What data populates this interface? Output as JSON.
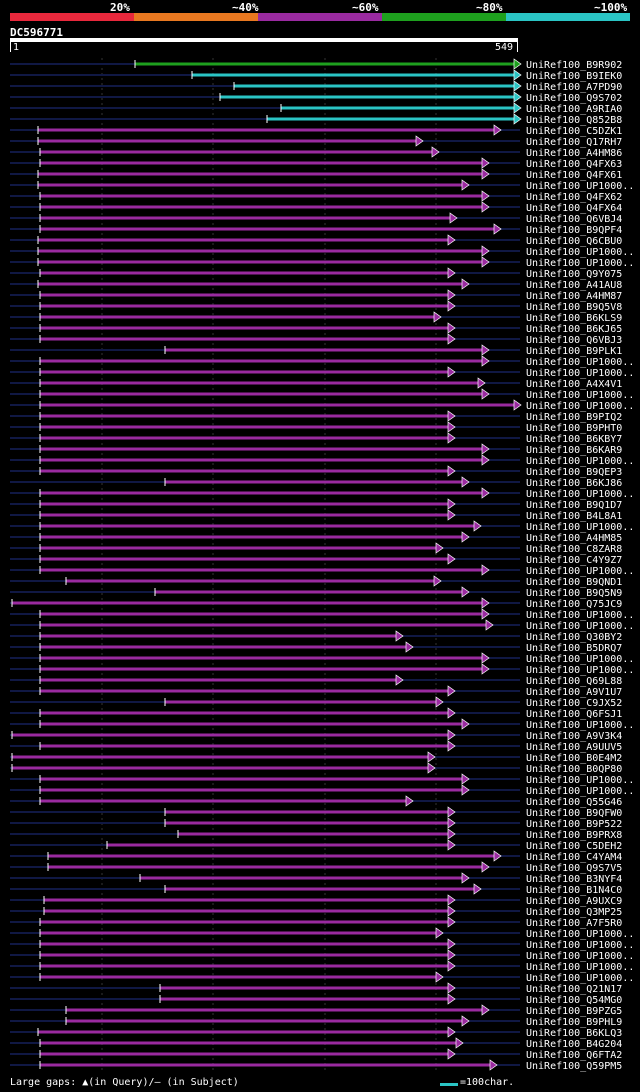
{
  "legend": [
    {
      "label": "20%",
      "color": "#e8283c"
    },
    {
      "label": "~40%",
      "color": "#e87820"
    },
    {
      "label": "~60%",
      "color": "#9a2aa0"
    },
    {
      "label": "~80%",
      "color": "#1ea01e"
    },
    {
      "label": "~100%",
      "color": "#2ac4c4"
    }
  ],
  "query": {
    "id": "DC596771",
    "start": "1",
    "end": "549"
  },
  "footer": {
    "gaps_text": "Large gaps: ▲(in Query)/– (in Subject)",
    "scale_text": "=100char."
  },
  "hits": [
    {
      "id": "UniRef100_B9R902",
      "color": "#1ea01e",
      "qs": 135,
      "qe": 516,
      "arrow": "end"
    },
    {
      "id": "UniRef100_B9IEK0",
      "color": "#2ac4c4",
      "qs": 192,
      "qe": 516,
      "arrow": "end"
    },
    {
      "id": "UniRef100_A7PD90",
      "color": "#2ac4c4",
      "qs": 234,
      "qe": 516,
      "arrow": "end"
    },
    {
      "id": "UniRef100_Q9S702",
      "color": "#2ac4c4",
      "qs": 220,
      "qe": 516,
      "arrow": "end"
    },
    {
      "id": "UniRef100_A9RIA0",
      "color": "#2ac4c4",
      "qs": 281,
      "qe": 516,
      "arrow": "end"
    },
    {
      "id": "UniRef100_Q852B8",
      "color": "#2ac4c4",
      "qs": 267,
      "qe": 516,
      "arrow": "end"
    },
    {
      "id": "UniRef100_C5DZK1",
      "color": "#9a2aa0",
      "qs": 38,
      "qe": 496,
      "arrow": "end"
    },
    {
      "id": "UniRef100_Q17RH7",
      "color": "#9a2aa0",
      "qs": 38,
      "qe": 418,
      "arrow": "end"
    },
    {
      "id": "UniRef100_A4HM86",
      "color": "#9a2aa0",
      "qs": 40,
      "qe": 434,
      "arrow": "end"
    },
    {
      "id": "UniRef100_Q4FX63",
      "color": "#9a2aa0",
      "qs": 40,
      "qe": 484,
      "arrow": "end"
    },
    {
      "id": "UniRef100_Q4FX61",
      "color": "#9a2aa0",
      "qs": 38,
      "qe": 484,
      "arrow": "end"
    },
    {
      "id": "UniRef100_UP1000..",
      "color": "#9a2aa0",
      "qs": 38,
      "qe": 464,
      "arrow": "end"
    },
    {
      "id": "UniRef100_Q4FX62",
      "color": "#9a2aa0",
      "qs": 40,
      "qe": 484,
      "arrow": "end"
    },
    {
      "id": "UniRef100_Q4FX64",
      "color": "#9a2aa0",
      "qs": 40,
      "qe": 484,
      "arrow": "end"
    },
    {
      "id": "UniRef100_Q6VBJ4",
      "color": "#9a2aa0",
      "qs": 40,
      "qe": 452,
      "arrow": "end"
    },
    {
      "id": "UniRef100_B9QPF4",
      "color": "#9a2aa0",
      "qs": 40,
      "qe": 496,
      "arrow": "end"
    },
    {
      "id": "UniRef100_Q6CBU0",
      "color": "#9a2aa0",
      "qs": 38,
      "qe": 450,
      "arrow": "end"
    },
    {
      "id": "UniRef100_UP1000..",
      "color": "#9a2aa0",
      "qs": 38,
      "qe": 484,
      "arrow": "end"
    },
    {
      "id": "UniRef100_UP1000..",
      "color": "#9a2aa0",
      "qs": 38,
      "qe": 484,
      "arrow": "end"
    },
    {
      "id": "UniRef100_Q9Y075",
      "color": "#9a2aa0",
      "qs": 40,
      "qe": 450,
      "arrow": "end"
    },
    {
      "id": "UniRef100_A41AU8",
      "color": "#9a2aa0",
      "qs": 38,
      "qe": 464,
      "arrow": "end"
    },
    {
      "id": "UniRef100_A4HM87",
      "color": "#9a2aa0",
      "qs": 40,
      "qe": 450,
      "arrow": "end"
    },
    {
      "id": "UniRef100_B9Q5V8",
      "color": "#9a2aa0",
      "qs": 40,
      "qe": 450,
      "arrow": "end"
    },
    {
      "id": "UniRef100_B6KLS9",
      "color": "#9a2aa0",
      "qs": 40,
      "qe": 436,
      "arrow": "end"
    },
    {
      "id": "UniRef100_B6KJ65",
      "color": "#9a2aa0",
      "qs": 40,
      "qe": 450,
      "arrow": "end"
    },
    {
      "id": "UniRef100_Q6VBJ3",
      "color": "#9a2aa0",
      "qs": 40,
      "qe": 450,
      "arrow": "end"
    },
    {
      "id": "UniRef100_B9PLK1",
      "color": "#9a2aa0",
      "qs": 165,
      "qe": 484,
      "arrow": "end"
    },
    {
      "id": "UniRef100_UP1000..",
      "color": "#9a2aa0",
      "qs": 40,
      "qe": 484,
      "arrow": "end"
    },
    {
      "id": "UniRef100_UP1000..",
      "color": "#9a2aa0",
      "qs": 40,
      "qe": 450,
      "arrow": "end"
    },
    {
      "id": "UniRef100_A4X4V1",
      "color": "#9a2aa0",
      "qs": 40,
      "qe": 480,
      "arrow": "end"
    },
    {
      "id": "UniRef100_UP1000..",
      "color": "#9a2aa0",
      "qs": 40,
      "qe": 484,
      "arrow": "end"
    },
    {
      "id": "UniRef100_UP1000..",
      "color": "#9a2aa0",
      "qs": 40,
      "qe": 516,
      "arrow": "end"
    },
    {
      "id": "UniRef100_B9PIQ2",
      "color": "#9a2aa0",
      "qs": 40,
      "qe": 450,
      "arrow": "end"
    },
    {
      "id": "UniRef100_B9PHT0",
      "color": "#9a2aa0",
      "qs": 40,
      "qe": 450,
      "arrow": "end"
    },
    {
      "id": "UniRef100_B6KBY7",
      "color": "#9a2aa0",
      "qs": 40,
      "qe": 450,
      "arrow": "end"
    },
    {
      "id": "UniRef100_B6KAR9",
      "color": "#9a2aa0",
      "qs": 40,
      "qe": 484,
      "arrow": "end"
    },
    {
      "id": "UniRef100_UP1000..",
      "color": "#9a2aa0",
      "qs": 40,
      "qe": 484,
      "arrow": "end"
    },
    {
      "id": "UniRef100_B9QEP3",
      "color": "#9a2aa0",
      "qs": 40,
      "qe": 450,
      "arrow": "end"
    },
    {
      "id": "UniRef100_B6KJ86",
      "color": "#9a2aa0",
      "qs": 165,
      "qe": 464,
      "arrow": "end"
    },
    {
      "id": "UniRef100_UP1000..",
      "color": "#9a2aa0",
      "qs": 40,
      "qe": 484,
      "arrow": "end"
    },
    {
      "id": "UniRef100_B9Q1D7",
      "color": "#9a2aa0",
      "qs": 40,
      "qe": 450,
      "arrow": "end"
    },
    {
      "id": "UniRef100_B4L8A1",
      "color": "#9a2aa0",
      "qs": 40,
      "qe": 450,
      "arrow": "end"
    },
    {
      "id": "UniRef100_UP1000..",
      "color": "#9a2aa0",
      "qs": 40,
      "qe": 476,
      "arrow": "end"
    },
    {
      "id": "UniRef100_A4HM85",
      "color": "#9a2aa0",
      "qs": 40,
      "qe": 464,
      "arrow": "end"
    },
    {
      "id": "UniRef100_C8ZAR8",
      "color": "#9a2aa0",
      "qs": 40,
      "qe": 438,
      "arrow": "end"
    },
    {
      "id": "UniRef100_C4Y9Z7",
      "color": "#9a2aa0",
      "qs": 40,
      "qe": 450,
      "arrow": "end"
    },
    {
      "id": "UniRef100_UP1000..",
      "color": "#9a2aa0",
      "qs": 40,
      "qe": 484,
      "arrow": "end"
    },
    {
      "id": "UniRef100_B9QND1",
      "color": "#9a2aa0",
      "qs": 66,
      "qe": 436,
      "arrow": "end"
    },
    {
      "id": "UniRef100_B9Q5N9",
      "color": "#9a2aa0",
      "qs": 155,
      "qe": 464,
      "arrow": "end"
    },
    {
      "id": "UniRef100_Q75JC9",
      "color": "#9a2aa0",
      "qs": 12,
      "qe": 484,
      "arrow": "end"
    },
    {
      "id": "UniRef100_UP1000..",
      "color": "#9a2aa0",
      "qs": 40,
      "qe": 484,
      "arrow": "end"
    },
    {
      "id": "UniRef100_UP1000..",
      "color": "#9a2aa0",
      "qs": 40,
      "qe": 488,
      "arrow": "end"
    },
    {
      "id": "UniRef100_Q30BY2",
      "color": "#9a2aa0",
      "qs": 40,
      "qe": 398,
      "arrow": "end"
    },
    {
      "id": "UniRef100_B5DRQ7",
      "color": "#9a2aa0",
      "qs": 40,
      "qe": 408,
      "arrow": "end"
    },
    {
      "id": "UniRef100_UP1000..",
      "color": "#9a2aa0",
      "qs": 40,
      "qe": 484,
      "arrow": "end"
    },
    {
      "id": "UniRef100_UP1000..",
      "color": "#9a2aa0",
      "qs": 40,
      "qe": 484,
      "arrow": "end"
    },
    {
      "id": "UniRef100_Q69L88",
      "color": "#9a2aa0",
      "qs": 40,
      "qe": 398,
      "arrow": "end"
    },
    {
      "id": "UniRef100_A9V1U7",
      "color": "#9a2aa0",
      "qs": 40,
      "qe": 450,
      "arrow": "end"
    },
    {
      "id": "UniRef100_C9JX52",
      "color": "#9a2aa0",
      "qs": 165,
      "qe": 438,
      "arrow": "end"
    },
    {
      "id": "UniRef100_Q6FSJ1",
      "color": "#9a2aa0",
      "qs": 40,
      "qe": 450,
      "arrow": "end"
    },
    {
      "id": "UniRef100_UP1000..",
      "color": "#9a2aa0",
      "qs": 40,
      "qe": 464,
      "arrow": "end"
    },
    {
      "id": "UniRef100_A9V3K4",
      "color": "#9a2aa0",
      "qs": 12,
      "qe": 450,
      "arrow": "end"
    },
    {
      "id": "UniRef100_A9UUV5",
      "color": "#9a2aa0",
      "qs": 40,
      "qe": 450,
      "arrow": "end"
    },
    {
      "id": "UniRef100_B0E4M2",
      "color": "#9a2aa0",
      "qs": 12,
      "qe": 430,
      "arrow": "end"
    },
    {
      "id": "UniRef100_B0QP80",
      "color": "#9a2aa0",
      "qs": 12,
      "qe": 430,
      "arrow": "end"
    },
    {
      "id": "UniRef100_UP1000..",
      "color": "#9a2aa0",
      "qs": 40,
      "qe": 464,
      "arrow": "end"
    },
    {
      "id": "UniRef100_UP1000..",
      "color": "#9a2aa0",
      "qs": 40,
      "qe": 464,
      "arrow": "end"
    },
    {
      "id": "UniRef100_Q55G46",
      "color": "#9a2aa0",
      "qs": 40,
      "qe": 408,
      "arrow": "end"
    },
    {
      "id": "UniRef100_B9QFW0",
      "color": "#9a2aa0",
      "qs": 165,
      "qe": 450,
      "arrow": "end"
    },
    {
      "id": "UniRef100_B9P522",
      "color": "#9a2aa0",
      "qs": 165,
      "qe": 450,
      "arrow": "end"
    },
    {
      "id": "UniRef100_B9PRX8",
      "color": "#9a2aa0",
      "qs": 178,
      "qe": 450,
      "arrow": "end"
    },
    {
      "id": "UniRef100_C5DEH2",
      "color": "#9a2aa0",
      "qs": 107,
      "qe": 450,
      "arrow": "end"
    },
    {
      "id": "UniRef100_C4YAM4",
      "color": "#9a2aa0",
      "qs": 48,
      "qe": 496,
      "arrow": "end"
    },
    {
      "id": "UniRef100_Q9S7V5",
      "color": "#9a2aa0",
      "qs": 48,
      "qe": 484,
      "arrow": "end"
    },
    {
      "id": "UniRef100_B3NYF4",
      "color": "#9a2aa0",
      "qs": 140,
      "qe": 464,
      "arrow": "end"
    },
    {
      "id": "UniRef100_B1N4C0",
      "color": "#9a2aa0",
      "qs": 165,
      "qe": 476,
      "arrow": "end"
    },
    {
      "id": "UniRef100_A9UXC9",
      "color": "#9a2aa0",
      "qs": 44,
      "qe": 450,
      "arrow": "end"
    },
    {
      "id": "UniRef100_Q3MP25",
      "color": "#9a2aa0",
      "qs": 44,
      "qe": 450,
      "arrow": "end"
    },
    {
      "id": "UniRef100_A7F5R0",
      "color": "#9a2aa0",
      "qs": 40,
      "qe": 450,
      "arrow": "end"
    },
    {
      "id": "UniRef100_UP1000..",
      "color": "#9a2aa0",
      "qs": 40,
      "qe": 438,
      "arrow": "end"
    },
    {
      "id": "UniRef100_UP1000..",
      "color": "#9a2aa0",
      "qs": 40,
      "qe": 450,
      "arrow": "end"
    },
    {
      "id": "UniRef100_UP1000..",
      "color": "#9a2aa0",
      "qs": 40,
      "qe": 450,
      "arrow": "end"
    },
    {
      "id": "UniRef100_UP1000..",
      "color": "#9a2aa0",
      "qs": 40,
      "qe": 450,
      "arrow": "end"
    },
    {
      "id": "UniRef100_UP1000..",
      "color": "#9a2aa0",
      "qs": 40,
      "qe": 438,
      "arrow": "end"
    },
    {
      "id": "UniRef100_Q21N17",
      "color": "#9a2aa0",
      "qs": 160,
      "qe": 450,
      "arrow": "end"
    },
    {
      "id": "UniRef100_Q54MG0",
      "color": "#9a2aa0",
      "qs": 160,
      "qe": 450,
      "arrow": "end"
    },
    {
      "id": "UniRef100_B9PZG5",
      "color": "#9a2aa0",
      "qs": 66,
      "qe": 484,
      "arrow": "end"
    },
    {
      "id": "UniRef100_B9PHL9",
      "color": "#9a2aa0",
      "qs": 66,
      "qe": 464,
      "arrow": "end"
    },
    {
      "id": "UniRef100_B6KLQ3",
      "color": "#9a2aa0",
      "qs": 38,
      "qe": 450,
      "arrow": "end"
    },
    {
      "id": "UniRef100_B4G204",
      "color": "#9a2aa0",
      "qs": 40,
      "qe": 458,
      "arrow": "end"
    },
    {
      "id": "UniRef100_Q6FTA2",
      "color": "#9a2aa0",
      "qs": 40,
      "qe": 450,
      "arrow": "end"
    },
    {
      "id": "UniRef100_Q59PM5",
      "color": "#9a2aa0",
      "qs": 40,
      "qe": 492,
      "arrow": "end"
    }
  ]
}
